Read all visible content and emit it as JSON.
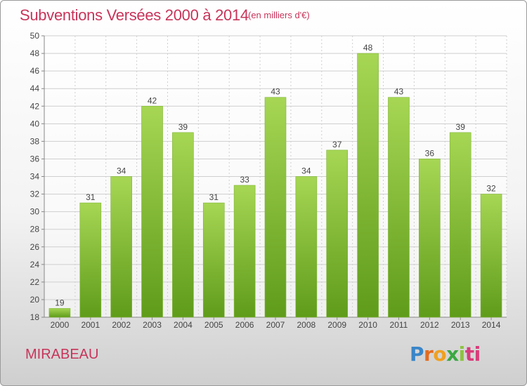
{
  "header": {
    "title": "Subventions Versées 2000 à 2014",
    "unit": "(en milliers d'€)"
  },
  "footer": {
    "place": "MIRABEAU",
    "logo_letters": [
      "P",
      "r",
      "o",
      "x",
      "i",
      "ti"
    ]
  },
  "colors": {
    "title": "#c8345a",
    "bar_light": "#a6d654",
    "bar_dark": "#5f9c1a",
    "grid": "#cfcfcf"
  },
  "chart_data": {
    "type": "bar",
    "categories": [
      "2000",
      "2001",
      "2002",
      "2003",
      "2004",
      "2005",
      "2006",
      "2007",
      "2008",
      "2009",
      "2010",
      "2011",
      "2012",
      "2013",
      "2014"
    ],
    "values": [
      19,
      31,
      34,
      42,
      39,
      31,
      33,
      43,
      34,
      37,
      48,
      43,
      36,
      39,
      32
    ],
    "title": "Subventions Versées 2000 à 2014",
    "ylabel": "(en milliers d'€)",
    "ylim": [
      18,
      50
    ],
    "yticks": [
      18,
      20,
      22,
      24,
      26,
      28,
      30,
      32,
      34,
      36,
      38,
      40,
      42,
      44,
      46,
      48,
      50
    ],
    "grid": true
  }
}
